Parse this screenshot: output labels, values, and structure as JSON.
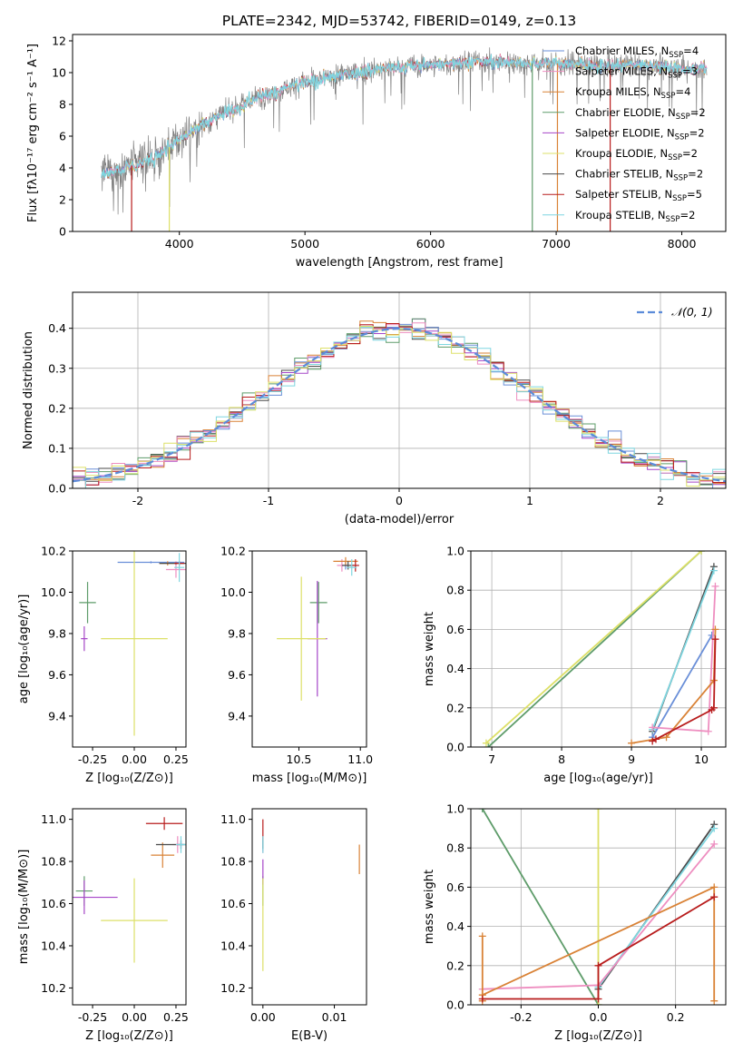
{
  "title": "PLATE=2342, MJD=53742, FIBERID=0149, z=0.13",
  "models": [
    {
      "name": "Chabrier MILES, N",
      "n": "4",
      "color": "#6a8fd8"
    },
    {
      "name": "Salpeter MILES, N",
      "n": "3",
      "color": "#ee8ec0"
    },
    {
      "name": "Kroupa MILES, N",
      "n": "4",
      "color": "#d98236"
    },
    {
      "name": "Chabrier ELODIE, N",
      "n": "2",
      "color": "#5e9c6a"
    },
    {
      "name": "Salpeter ELODIE, N",
      "n": "2",
      "color": "#a646c8"
    },
    {
      "name": "Kroupa ELODIE, N",
      "n": "2",
      "color": "#dde068"
    },
    {
      "name": "Chabrier STELIB, N",
      "n": "2",
      "color": "#4a4a4a"
    },
    {
      "name": "Salpeter STELIB, N",
      "n": "5",
      "color": "#b81c1c"
    },
    {
      "name": "Kroupa STELIB, N",
      "n": "2",
      "color": "#7fd6e0"
    }
  ],
  "chart_data": [
    {
      "id": "spectrum",
      "type": "line",
      "xlabel": "wavelength [Angstrom, rest frame]",
      "ylabel": "Flux [fλ10⁻¹⁷ erg cm⁻² s⁻¹ A⁻¹]",
      "xlim": [
        3150,
        8350
      ],
      "ylim": [
        0,
        12.4
      ],
      "xticks": [
        4000,
        5000,
        6000,
        7000,
        8000
      ],
      "yticks": [
        0,
        2,
        4,
        6,
        8,
        10,
        12
      ],
      "grid": false,
      "legend": "right",
      "continuum": {
        "x": [
          3380,
          3600,
          3800,
          4000,
          4200,
          4400,
          4600,
          4800,
          5000,
          5200,
          5400,
          5600,
          5800,
          6000,
          6200,
          6400,
          6600,
          6800,
          7000,
          7200,
          7400,
          7600,
          7800,
          8000,
          8200
        ],
        "y": [
          3.6,
          4.1,
          4.6,
          5.8,
          6.8,
          7.6,
          8.4,
          8.9,
          9.4,
          9.7,
          10.0,
          10.2,
          10.4,
          10.5,
          10.6,
          10.7,
          10.7,
          10.6,
          10.6,
          10.5,
          10.4,
          10.5,
          10.4,
          10.3,
          10.2
        ]
      }
    },
    {
      "id": "residuals",
      "type": "bar",
      "xlabel": "(data-model)/error",
      "ylabel": "Normed distribution",
      "xlim": [
        -2.5,
        2.5
      ],
      "ylim": [
        0,
        0.49
      ],
      "xticks": [
        -2,
        -1,
        0,
        1,
        2
      ],
      "yticks": [
        0.0,
        0.1,
        0.2,
        0.3,
        0.4
      ],
      "grid": true,
      "legend": "top-right",
      "reference": {
        "label": "𝒩(0, 1)",
        "color": "#5b8bd9",
        "mu": 0,
        "sigma": 1
      },
      "bin_width": 0.1
    },
    {
      "id": "z_age",
      "type": "scatter",
      "xlabel": "Z [log₁₀(Z/Z⊙)]",
      "ylabel": "age  [log₁₀(age/yr)]",
      "xlim": [
        -0.37,
        0.31
      ],
      "ylim": [
        9.25,
        10.2
      ],
      "xticks": [
        -0.25,
        0.0,
        0.25
      ],
      "yticks": [
        9.4,
        9.6,
        9.8,
        10.0,
        10.2
      ],
      "points": [
        {
          "m": 0,
          "x": 0.1,
          "y": 10.145,
          "xe": 0.2,
          "ye": 0.005
        },
        {
          "m": 1,
          "x": 0.25,
          "y": 10.11,
          "xe": 0.06,
          "ye": 0.04
        },
        {
          "m": 2,
          "x": 0.2,
          "y": 10.14,
          "xe": 0.05,
          "ye": 0.01
        },
        {
          "m": 3,
          "x": -0.28,
          "y": 9.95,
          "xe": 0.05,
          "ye": 0.1
        },
        {
          "m": 4,
          "x": -0.3,
          "y": 9.775,
          "xe": 0.02,
          "ye": 0.06
        },
        {
          "m": 5,
          "x": 0.0,
          "y": 9.775,
          "xe": 0.2,
          "ye": 0.47
        },
        {
          "m": 6,
          "x": 0.25,
          "y": 10.14,
          "xe": 0.1,
          "ye": 0.005
        },
        {
          "m": 7,
          "x": 0.27,
          "y": 10.14,
          "xe": 0.03,
          "ye": 0.01
        },
        {
          "m": 8,
          "x": 0.27,
          "y": 10.12,
          "xe": 0.03,
          "ye": 0.07
        }
      ]
    },
    {
      "id": "mass_age",
      "type": "scatter",
      "xlabel": "mass [log₁₀(M/M⊙)]",
      "ylabel": "",
      "xlim": [
        10.12,
        11.05
      ],
      "ylim": [
        9.25,
        10.2
      ],
      "xticks": [
        10.5,
        11.0
      ],
      "yticks": [
        9.4,
        9.6,
        9.8,
        10.0,
        10.2
      ],
      "points": [
        {
          "m": 0,
          "x": 10.88,
          "y": 10.13,
          "xe": 0.02,
          "ye": 0.02
        },
        {
          "m": 1,
          "x": 10.85,
          "y": 10.13,
          "xe": 0.04,
          "ye": 0.03
        },
        {
          "m": 2,
          "x": 10.88,
          "y": 10.15,
          "xe": 0.1,
          "ye": 0.02
        },
        {
          "m": 3,
          "x": 10.66,
          "y": 9.95,
          "xe": 0.07,
          "ye": 0.1
        },
        {
          "m": 4,
          "x": 10.65,
          "y": 9.775,
          "xe": 0.08,
          "ye": 0.28
        },
        {
          "m": 5,
          "x": 10.52,
          "y": 9.775,
          "xe": 0.2,
          "ye": 0.3
        },
        {
          "m": 6,
          "x": 10.9,
          "y": 10.13,
          "xe": 0.05,
          "ye": 0.02
        },
        {
          "m": 7,
          "x": 10.96,
          "y": 10.13,
          "xe": 0.03,
          "ye": 0.03
        },
        {
          "m": 8,
          "x": 10.93,
          "y": 10.12,
          "xe": 0.04,
          "ye": 0.04
        }
      ]
    },
    {
      "id": "age_weight",
      "type": "line",
      "xlabel": "age  [log₁₀(age/yr)]",
      "ylabel": "mass weight",
      "xlim": [
        6.7,
        10.35
      ],
      "ylim": [
        0,
        1
      ],
      "xticks": [
        7,
        8,
        9,
        10
      ],
      "yticks": [
        0.0,
        0.2,
        0.4,
        0.6,
        0.8,
        1.0
      ],
      "grid": true,
      "series": [
        {
          "m": 3,
          "x": [
            6.95,
            10.0
          ],
          "y": [
            0.0,
            1.0
          ]
        },
        {
          "m": 5,
          "x": [
            6.92,
            10.0
          ],
          "y": [
            0.02,
            1.0
          ]
        },
        {
          "m": 6,
          "x": [
            9.3,
            10.18
          ],
          "y": [
            0.08,
            0.92
          ]
        },
        {
          "m": 8,
          "x": [
            9.3,
            10.18
          ],
          "y": [
            0.09,
            0.9
          ]
        },
        {
          "m": 0,
          "x": [
            9.3,
            10.15
          ],
          "y": [
            0.05,
            0.57
          ]
        },
        {
          "m": 1,
          "x": [
            9.3,
            10.1,
            10.2
          ],
          "y": [
            0.1,
            0.08,
            0.82
          ]
        },
        {
          "m": 2,
          "x": [
            9.0,
            9.5,
            10.18,
            10.2
          ],
          "y": [
            0.02,
            0.05,
            0.34,
            0.6
          ]
        },
        {
          "m": 7,
          "x": [
            9.3,
            9.35,
            10.15,
            10.18,
            10.2
          ],
          "y": [
            0.03,
            0.04,
            0.19,
            0.2,
            0.55
          ]
        }
      ]
    },
    {
      "id": "z_mass",
      "type": "scatter",
      "xlabel": "Z [log₁₀(Z/Z⊙)]",
      "ylabel": "mass [log₁₀(M/M⊙)]",
      "xlim": [
        -0.37,
        0.31
      ],
      "ylim": [
        10.12,
        11.05
      ],
      "xticks": [
        -0.25,
        0.0,
        0.25
      ],
      "yticks": [
        10.2,
        10.4,
        10.6,
        10.8,
        11.0
      ],
      "points": [
        {
          "m": 0,
          "x": 0.28,
          "y": 10.88,
          "xe": 0.02,
          "ye": 0.02
        },
        {
          "m": 1,
          "x": 0.26,
          "y": 10.88,
          "xe": 0.03,
          "ye": 0.04
        },
        {
          "m": 2,
          "x": 0.17,
          "y": 10.83,
          "xe": 0.07,
          "ye": 0.06
        },
        {
          "m": 3,
          "x": -0.3,
          "y": 10.66,
          "xe": 0.05,
          "ye": 0.07
        },
        {
          "m": 4,
          "x": -0.3,
          "y": 10.63,
          "xe": 0.2,
          "ye": 0.08
        },
        {
          "m": 5,
          "x": 0.0,
          "y": 10.52,
          "xe": 0.2,
          "ye": 0.2
        },
        {
          "m": 6,
          "x": 0.28,
          "y": 10.88,
          "xe": 0.15,
          "ye": 0.02
        },
        {
          "m": 7,
          "x": 0.18,
          "y": 10.98,
          "xe": 0.11,
          "ye": 0.03
        },
        {
          "m": 8,
          "x": 0.28,
          "y": 10.88,
          "xe": 0.03,
          "ye": 0.04
        }
      ]
    },
    {
      "id": "ebv_mass",
      "type": "scatter",
      "xlabel": "E(B-V)",
      "ylabel": "",
      "xlim": [
        -0.0015,
        0.0145
      ],
      "ylim": [
        10.12,
        11.05
      ],
      "xticks": [
        0.0,
        0.01
      ],
      "yticks": [
        10.2,
        10.4,
        10.6,
        10.8,
        11.0
      ],
      "points": [
        {
          "m": 0,
          "x": 0.0,
          "y": 10.88,
          "xe": 0.0,
          "ye": 0.03
        },
        {
          "m": 1,
          "x": 0.0,
          "y": 10.88,
          "xe": 0.0,
          "ye": 0.04
        },
        {
          "m": 2,
          "x": 0.0135,
          "y": 10.81,
          "xe": 0.0,
          "ye": 0.07
        },
        {
          "m": 3,
          "x": 0.0,
          "y": 10.66,
          "xe": 0.0,
          "ye": 0.07
        },
        {
          "m": 4,
          "x": 0.0,
          "y": 10.75,
          "xe": 0.0,
          "ye": 0.06
        },
        {
          "m": 5,
          "x": 0.0,
          "y": 10.5,
          "xe": 0.0,
          "ye": 0.22
        },
        {
          "m": 6,
          "x": 0.0,
          "y": 10.88,
          "xe": 0.0,
          "ye": 0.02
        },
        {
          "m": 7,
          "x": 0.0,
          "y": 10.95,
          "xe": 0.0,
          "ye": 0.05
        },
        {
          "m": 8,
          "x": 0.0,
          "y": 10.88,
          "xe": 0.0,
          "ye": 0.04
        }
      ]
    },
    {
      "id": "z_weight",
      "type": "line",
      "xlabel": "Z [log₁₀(Z/Z⊙)]",
      "ylabel": "mass weight",
      "xlim": [
        -0.33,
        0.33
      ],
      "ylim": [
        0,
        1
      ],
      "xticks": [
        -0.2,
        0.0,
        0.2
      ],
      "yticks": [
        0.0,
        0.2,
        0.4,
        0.6,
        0.8,
        1.0
      ],
      "grid": true,
      "series": [
        {
          "m": 3,
          "x": [
            -0.3,
            0.0
          ],
          "y": [
            1.0,
            0.0
          ]
        },
        {
          "m": 5,
          "x": [
            0.0,
            0.0
          ],
          "y": [
            0.0,
            1.0
          ]
        },
        {
          "m": 6,
          "x": [
            0.0,
            0.3
          ],
          "y": [
            0.08,
            0.92
          ]
        },
        {
          "m": 8,
          "x": [
            0.0,
            0.3
          ],
          "y": [
            0.09,
            0.9
          ]
        },
        {
          "m": 1,
          "x": [
            -0.3,
            0.0,
            0.3
          ],
          "y": [
            0.08,
            0.1,
            0.82
          ]
        },
        {
          "m": 2,
          "x": [
            -0.3,
            -0.3,
            -0.3,
            0.3,
            0.3
          ],
          "y": [
            0.35,
            0.02,
            0.05,
            0.6,
            0.02
          ]
        },
        {
          "m": 7,
          "x": [
            -0.3,
            0.0,
            0.0,
            0.3
          ],
          "y": [
            0.03,
            0.03,
            0.2,
            0.55
          ]
        }
      ]
    }
  ]
}
